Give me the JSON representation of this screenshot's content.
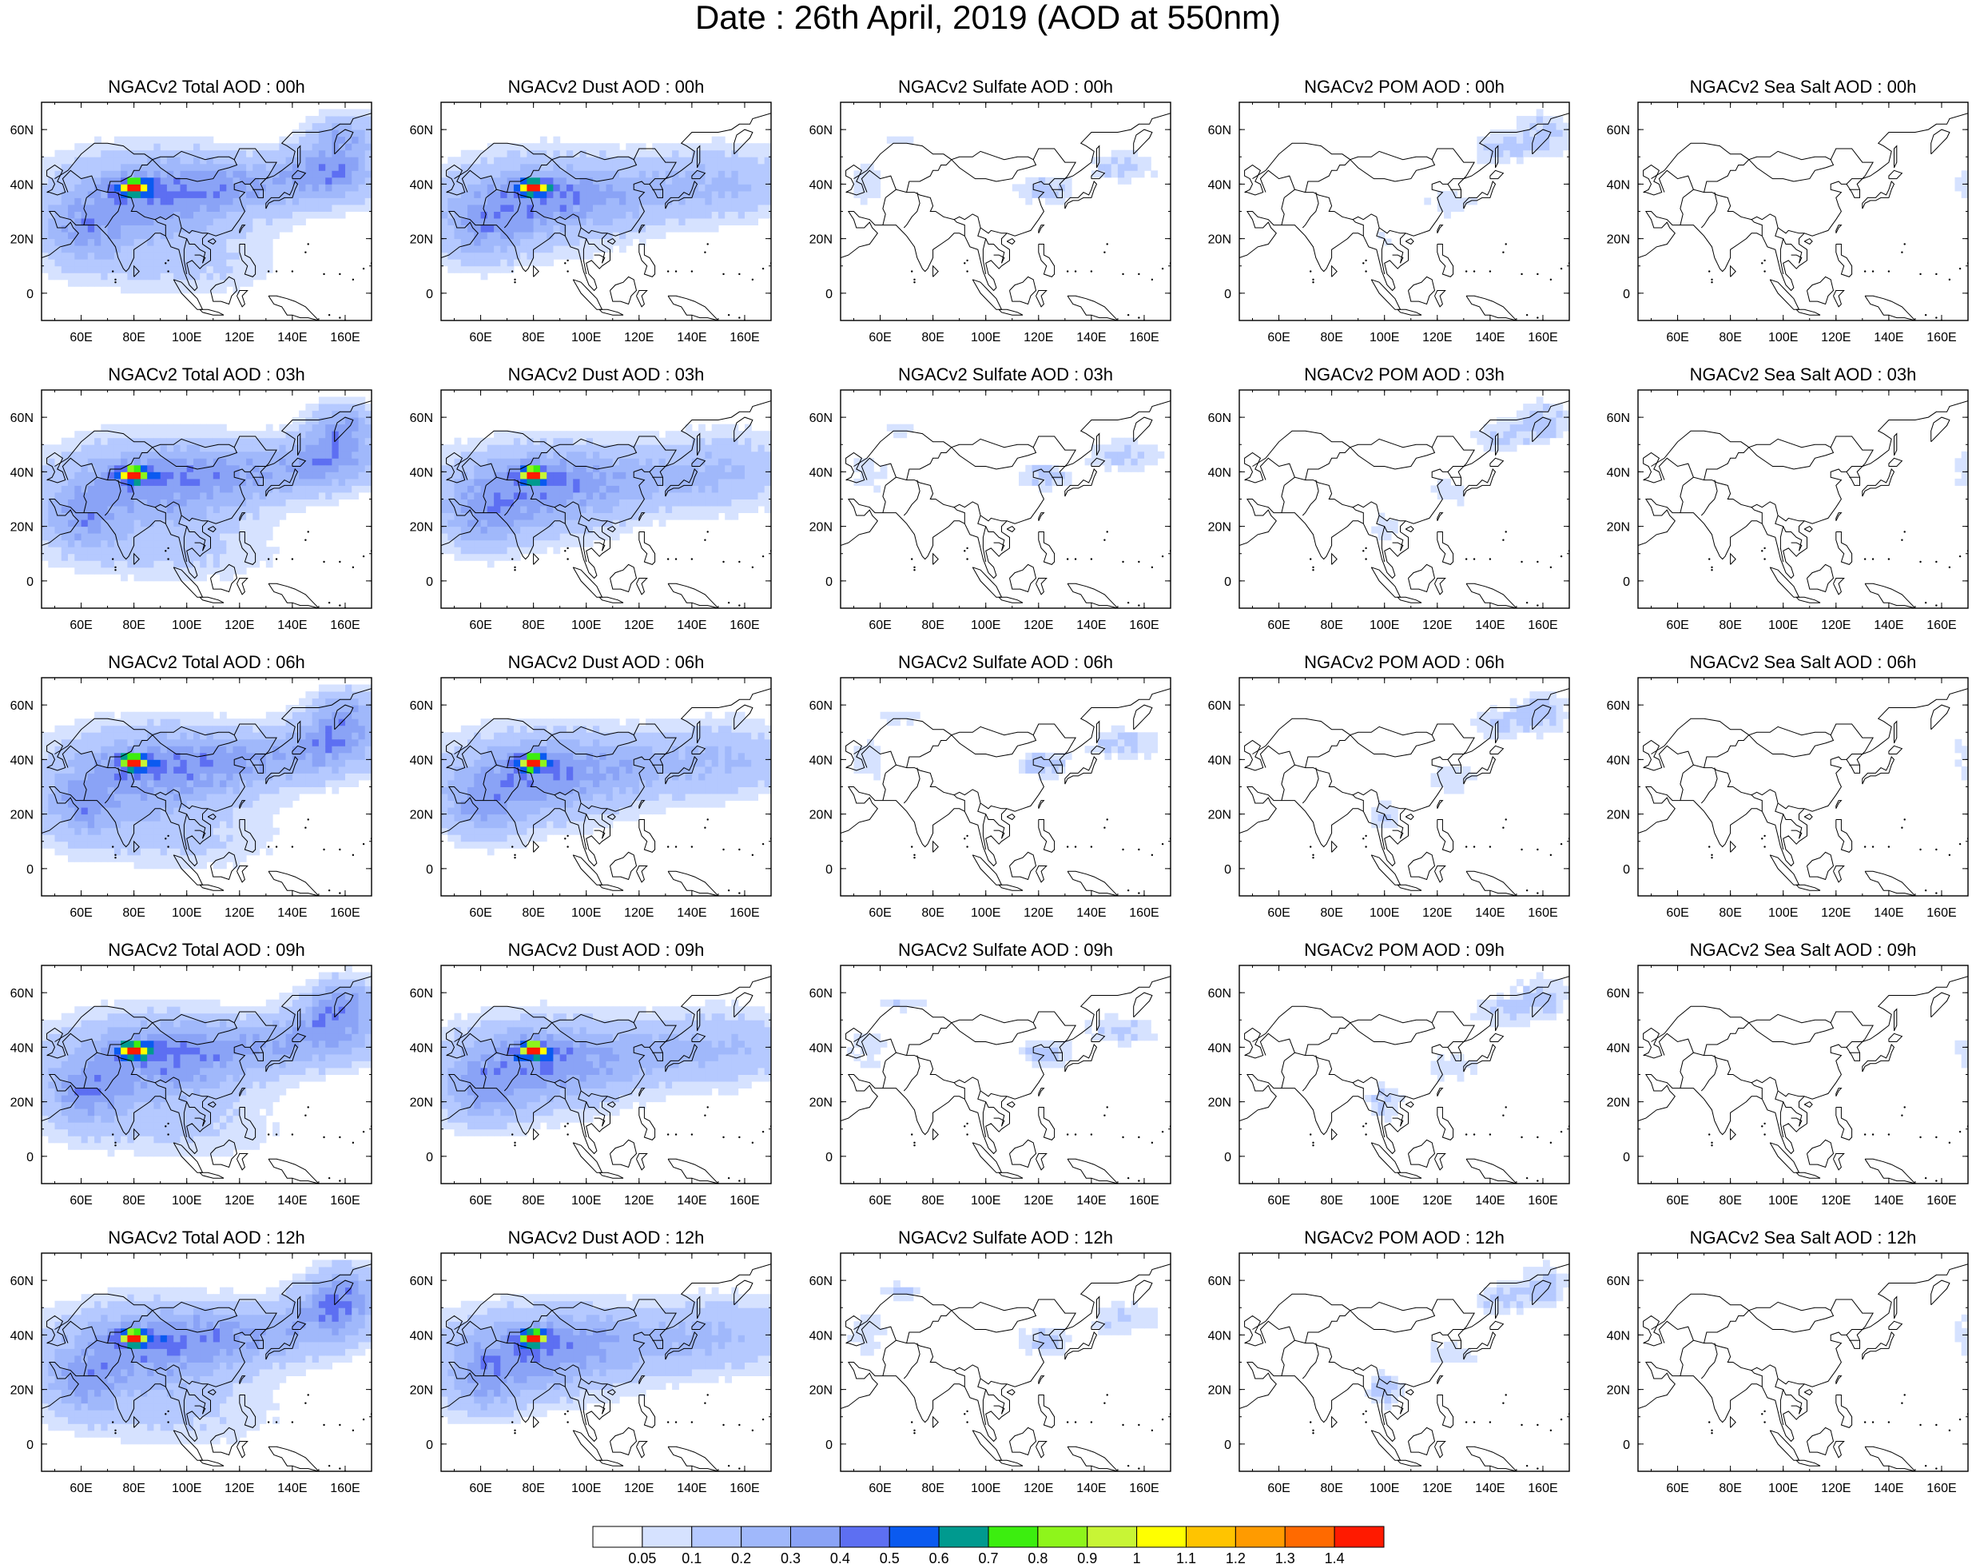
{
  "title": "Date : 26th April, 2019 (AOD at 550nm)",
  "columns": [
    {
      "id": "total",
      "titles": [
        "NGACv2 Total AOD : 00h",
        "NGACv2 Total AOD : 03h",
        "NGACv2 Total AOD : 06h",
        "NGACv2 Total AOD : 09h",
        "NGACv2 Total AOD  : 12h"
      ]
    },
    {
      "id": "dust",
      "titles": [
        "NGACv2 Dust AOD : 00h",
        "NGACv2 Dust AOD : 03h",
        "NGACv2 Dust AOD : 06h",
        "NGACv2 Dust AOD : 09h",
        "NGACv2 Dust AOD : 12h"
      ]
    },
    {
      "id": "sulfate",
      "titles": [
        "NGACv2 Sulfate AOD : 00h",
        "NGACv2 Sulfate AOD : 03h",
        "NGACv2 Sulfate AOD : 06h",
        "NGACv2 Sulfate AOD : 09h",
        "NGACv2 Sulfate AOD : 12h"
      ]
    },
    {
      "id": "pom",
      "titles": [
        "NGACv2 POM AOD : 00h",
        "NGACv2 POM AOD : 03h",
        "NGACv2 POM AOD : 06h",
        "NGACv2 POM AOD : 09h",
        "NGACv2 POM  AOD : 12h"
      ]
    },
    {
      "id": "seasalt",
      "titles": [
        "NGACv2 Sea Salt AOD : 00h",
        "NGACv2 Sea Salt AOD : 03h",
        "NGACv2 Sea Salt AOD : 06h",
        "NGACv2 Sea Salt  AOD : 09h",
        "NGACv2 Sea Salt  AOD : 12h"
      ]
    }
  ],
  "map": {
    "lon_range": [
      45,
      170
    ],
    "lat_range": [
      -10,
      70
    ],
    "lon_ticks": [
      "60E",
      "80E",
      "100E",
      "120E",
      "140E",
      "160E"
    ],
    "lat_ticks": [
      "60N",
      "40N",
      "20N",
      "0"
    ]
  },
  "colorbar": {
    "labels": [
      "0.05",
      "0.1",
      "0.2",
      "0.3",
      "0.4",
      "0.5",
      "0.6",
      "0.7",
      "0.8",
      "0.9",
      "1",
      "1.1",
      "1.2",
      "1.3",
      "1.4"
    ],
    "colors": [
      "#ffffff",
      "#d6e2ff",
      "#b5c9ff",
      "#a0b8fb",
      "#8aa3f6",
      "#5d6ff2",
      "#0a5af0",
      "#009a8f",
      "#3cee0f",
      "#8ef51b",
      "#c8f535",
      "#ffff00",
      "#ffc400",
      "#ff9b00",
      "#ff6a00",
      "#ff1a00"
    ]
  }
}
